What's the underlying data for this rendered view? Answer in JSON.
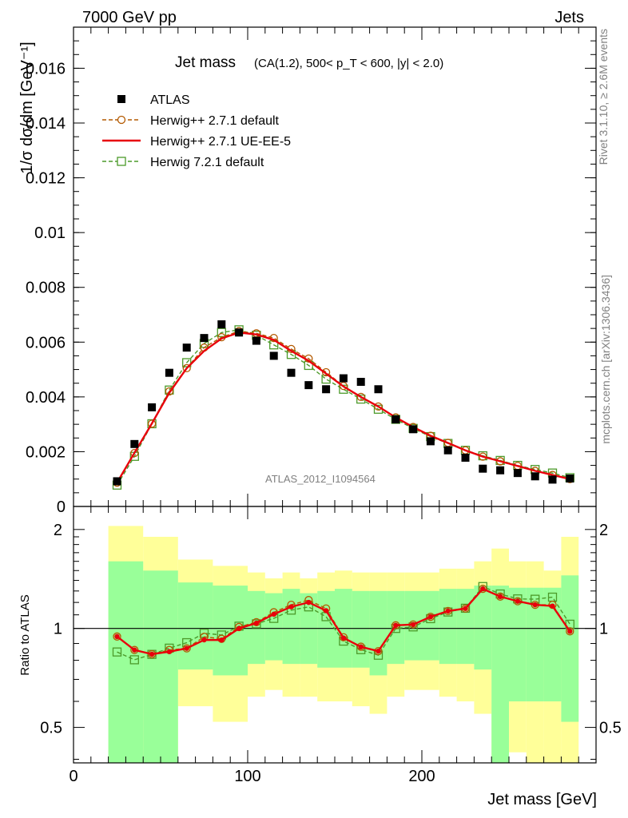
{
  "header": {
    "left": "7000 GeV pp",
    "right": "Jets"
  },
  "chart_data": [
    {
      "type": "scatter",
      "panel": "main",
      "title": "Jet mass",
      "subtitle": "(CA(1.2), 500< p_T < 600, |y| < 2.0)",
      "ylabel": "1/σ dσ/dm [GeV⁻¹]",
      "ylim": [
        0,
        0.0175
      ],
      "xlim": [
        0,
        300
      ],
      "y_ticks": [
        "0",
        "0.002",
        "0.004",
        "0.006",
        "0.008",
        "0.01",
        "0.012",
        "0.014",
        "0.016"
      ],
      "watermark": "ATLAS_2012_I1094564",
      "legend_position": "top-left",
      "x": [
        25,
        35,
        45,
        55,
        65,
        75,
        85,
        95,
        105,
        115,
        125,
        135,
        145,
        155,
        165,
        175,
        185,
        195,
        205,
        215,
        225,
        235,
        245,
        255,
        265,
        275,
        285
      ],
      "series": [
        {
          "name": "ATLAS",
          "color": "#000000",
          "marker": "filled-square",
          "values": [
            0.00092,
            0.00228,
            0.00362,
            0.00488,
            0.0058,
            0.00615,
            0.00665,
            0.00635,
            0.00605,
            0.0055,
            0.00488,
            0.00443,
            0.00428,
            0.00468,
            0.00455,
            0.00428,
            0.00318,
            0.00282,
            0.00238,
            0.00205,
            0.00178,
            0.00138,
            0.00132,
            0.00122,
            0.0011,
            0.00098,
            0.00102
          ]
        },
        {
          "name": "Herwig++ 2.7.1 default",
          "color": "#b35900",
          "marker": "open-circle",
          "dashed": true,
          "values": [
            0.00087,
            0.00195,
            0.00302,
            0.0042,
            0.00505,
            0.0058,
            0.00618,
            0.0064,
            0.00632,
            0.00615,
            0.00575,
            0.0054,
            0.0049,
            0.0044,
            0.004,
            0.00365,
            0.00325,
            0.0029,
            0.00258,
            0.00232,
            0.00205,
            0.00182,
            0.00165,
            0.00148,
            0.0013,
            0.00115,
            0.001
          ]
        },
        {
          "name": "Herwig++ 2.7.1 UE-EE-5",
          "color": "#e8000b",
          "marker": "line",
          "dashed": false,
          "values": [
            0.00087,
            0.00196,
            0.00303,
            0.00415,
            0.00505,
            0.00568,
            0.00613,
            0.00635,
            0.00628,
            0.00608,
            0.00568,
            0.00532,
            0.00485,
            0.00438,
            0.004,
            0.00365,
            0.00325,
            0.0029,
            0.00258,
            0.00232,
            0.00205,
            0.00182,
            0.00165,
            0.00148,
            0.0013,
            0.00115,
            0.001
          ]
        },
        {
          "name": "Herwig 7.2.1 default",
          "color": "#4c9a2a",
          "marker": "open-square",
          "dashed": true,
          "values": [
            0.00078,
            0.00183,
            0.00302,
            0.00425,
            0.00525,
            0.00595,
            0.00635,
            0.00645,
            0.00625,
            0.0059,
            0.00555,
            0.00515,
            0.00465,
            0.00428,
            0.00392,
            0.00355,
            0.00318,
            0.00285,
            0.00255,
            0.0023,
            0.00205,
            0.00185,
            0.00168,
            0.0015,
            0.00135,
            0.00122,
            0.00105
          ]
        }
      ]
    },
    {
      "type": "line",
      "panel": "ratio",
      "ylabel": "Ratio to ATLAS",
      "xlabel": "Jet mass [GeV]",
      "yscale": "log",
      "ylim": [
        0.39,
        2.35
      ],
      "xlim": [
        0,
        300
      ],
      "x_ticks": [
        "0",
        "100",
        "200"
      ],
      "y_ticks": [
        "0.5",
        "1",
        "2"
      ],
      "reference_line": 1,
      "band_edges": [
        20,
        40,
        60,
        80,
        100,
        120,
        140,
        160,
        180,
        200,
        220,
        240,
        260,
        280,
        290
      ],
      "band_edges_x": [
        20,
        40,
        60,
        80,
        100,
        110,
        120,
        130,
        140,
        150,
        160,
        170,
        180,
        190,
        200,
        210,
        220,
        230,
        240,
        250,
        260,
        270,
        280,
        290
      ],
      "bands": {
        "yellow": {
          "color": "#ffff99",
          "upper": [
            2.05,
            1.9,
            1.62,
            1.55,
            1.48,
            1.42,
            1.48,
            1.42,
            1.48,
            1.5,
            1.48,
            1.48,
            1.48,
            1.48,
            1.48,
            1.52,
            1.52,
            1.6,
            1.75,
            1.6,
            1.6,
            1.5,
            1.9,
            1.9
          ],
          "lower": [
            0.38,
            0.38,
            0.58,
            0.52,
            0.62,
            0.65,
            0.62,
            0.62,
            0.6,
            0.6,
            0.58,
            0.55,
            0.62,
            0.65,
            0.65,
            0.62,
            0.6,
            0.55,
            0.38,
            0.42,
            0.38,
            0.38,
            0.38,
            0.38
          ]
        },
        "green": {
          "color": "#99ff99",
          "upper": [
            1.6,
            1.5,
            1.38,
            1.35,
            1.3,
            1.28,
            1.32,
            1.28,
            1.3,
            1.32,
            1.3,
            1.3,
            1.3,
            1.3,
            1.3,
            1.32,
            1.32,
            1.35,
            1.35,
            1.33,
            1.33,
            1.33,
            1.45,
            1.35
          ],
          "lower": [
            0.38,
            0.38,
            0.75,
            0.72,
            0.78,
            0.8,
            0.78,
            0.78,
            0.76,
            0.76,
            0.76,
            0.72,
            0.78,
            0.8,
            0.8,
            0.78,
            0.78,
            0.75,
            0.38,
            0.6,
            0.6,
            0.6,
            0.52,
            0.72
          ]
        }
      },
      "x": [
        25,
        35,
        45,
        55,
        65,
        75,
        85,
        95,
        105,
        115,
        125,
        135,
        145,
        155,
        165,
        175,
        185,
        195,
        205,
        215,
        225,
        235,
        245,
        255,
        265,
        275,
        285
      ],
      "series": [
        {
          "name": "Herwig++ 2.7.1 default",
          "color": "#b35900",
          "values": [
            0.945,
            0.86,
            0.835,
            0.86,
            0.87,
            0.943,
            0.93,
            1.01,
            1.045,
            1.12,
            1.18,
            1.22,
            1.15,
            0.94,
            0.88,
            0.853,
            1.022,
            1.028,
            1.085,
            1.13,
            1.15,
            1.32,
            1.25,
            1.21,
            1.18,
            1.18,
            0.98
          ]
        },
        {
          "name": "Herwig++ 2.7.1 UE-EE-5",
          "color": "#e8000b",
          "values": [
            0.945,
            0.86,
            0.835,
            0.85,
            0.87,
            0.923,
            0.922,
            1.0,
            1.038,
            1.105,
            1.164,
            1.2,
            1.133,
            0.936,
            0.879,
            0.853,
            1.022,
            1.028,
            1.085,
            1.13,
            1.15,
            1.32,
            1.25,
            1.21,
            1.18,
            1.17,
            0.98
          ]
        },
        {
          "name": "Herwig 7.2.1 default",
          "color": "#4c9a2a",
          "values": [
            0.848,
            0.803,
            0.834,
            0.871,
            0.905,
            0.967,
            0.955,
            1.016,
            1.033,
            1.073,
            1.137,
            1.163,
            1.086,
            0.915,
            0.862,
            0.829,
            1.0,
            1.011,
            1.071,
            1.122,
            1.152,
            1.341,
            1.273,
            1.23,
            1.227,
            1.245,
            1.03
          ]
        }
      ]
    }
  ],
  "side_text": {
    "rivet": "Rivet 3.1.10, ≥ 2.6M events",
    "mcplots": "mcplots.cern.ch [arXiv:1306.3436]"
  }
}
